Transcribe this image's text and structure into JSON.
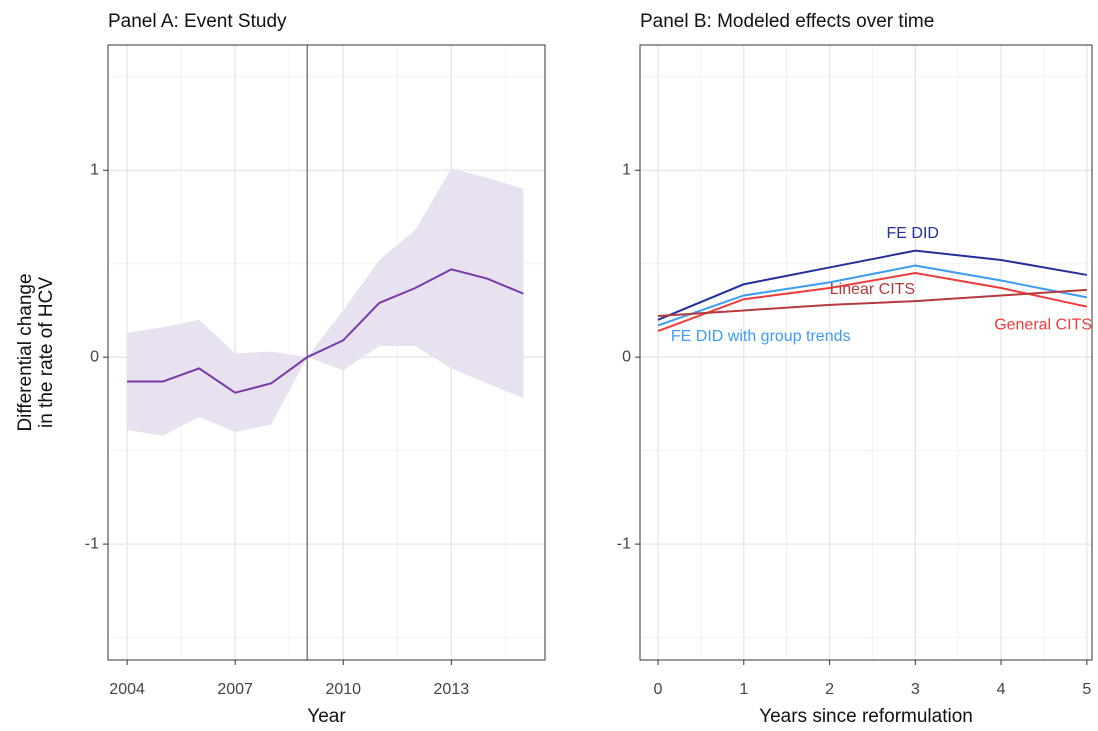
{
  "chart_data": [
    {
      "type": "line",
      "title": "Panel A: Event Study",
      "x_label": "Year",
      "y_label": [
        "Differential change",
        "in the rate of HCV"
      ],
      "x": [
        2004,
        2005,
        2006,
        2007,
        2008,
        2009,
        2010,
        2011,
        2012,
        2013,
        2014,
        2015
      ],
      "values": [
        -0.13,
        -0.13,
        -0.06,
        -0.19,
        -0.14,
        0,
        0.09,
        0.29,
        0.37,
        0.47,
        0.42,
        0.34
      ],
      "lower": [
        -0.39,
        -0.42,
        -0.32,
        -0.4,
        -0.36,
        0,
        -0.07,
        0.06,
        0.06,
        -0.06,
        -0.14,
        -0.22
      ],
      "upper": [
        0.13,
        0.16,
        0.2,
        0.02,
        0.03,
        0,
        0.25,
        0.52,
        0.68,
        1.01,
        0.96,
        0.9
      ],
      "color": "#7b3aa8",
      "band_color": "#e7e1f0",
      "vline": 2009,
      "vline_color": "#7f7f7f",
      "xlim": [
        2003.47,
        2015.6
      ],
      "xticks": [
        2004,
        2007,
        2010,
        2013
      ],
      "ylim": [
        -1.62,
        1.67
      ],
      "yticks": [
        -1,
        0,
        1
      ],
      "grid": true
    },
    {
      "type": "line",
      "title": "Panel B: Modeled effects over time",
      "x_label": "Years since reformulation",
      "x": [
        0,
        1,
        2,
        3,
        4,
        5
      ],
      "series": [
        {
          "name": "FE DID",
          "color": "#23309c",
          "values": [
            0.2,
            0.39,
            0.48,
            0.57,
            0.52,
            0.44
          ]
        },
        {
          "name": "FE DID with group trends",
          "color": "#3d9cf5",
          "values": [
            0.17,
            0.33,
            0.4,
            0.49,
            0.41,
            0.32
          ]
        },
        {
          "name": "General CITS",
          "color": "#ee3b3b",
          "values": [
            0.14,
            0.31,
            0.37,
            0.45,
            0.37,
            0.27
          ]
        },
        {
          "name": "Linear CITS",
          "color": "#b53a3e",
          "values": [
            0.22,
            0.25,
            0.28,
            0.3,
            0.33,
            0.36
          ]
        }
      ],
      "xlim": [
        -0.21,
        5.06
      ],
      "xticks": [
        0,
        1,
        2,
        3,
        4,
        5
      ],
      "ylim": [
        -1.62,
        1.67
      ],
      "yticks": [
        -1,
        0,
        1
      ],
      "grid": true
    }
  ]
}
